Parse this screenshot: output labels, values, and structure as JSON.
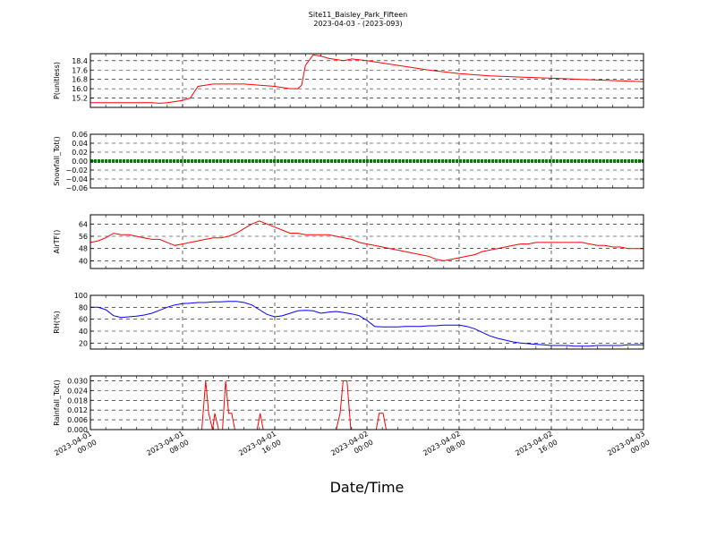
{
  "figure": {
    "title_line1": "Site11_Baisley_Park_Fifteen",
    "title_line2": "2023-04-03 - (2023-093)",
    "xlabel": "Date/Time"
  },
  "chart_data": [
    {
      "type": "line",
      "ylabel": "P(unitless)",
      "ylim": [
        14.4,
        19.0
      ],
      "yticks": [
        "15.2",
        "16.0",
        "16.8",
        "17.6",
        "18.4"
      ],
      "color": "#ff0000",
      "x": [
        0,
        4,
        8,
        9,
        10,
        12,
        13,
        14,
        16,
        20,
        24,
        26,
        27,
        27.5,
        28,
        29,
        30,
        31,
        32,
        33,
        34,
        36,
        40,
        44,
        48,
        52,
        56,
        60,
        64,
        68,
        72
      ],
      "values": [
        14.8,
        14.8,
        14.8,
        14.75,
        14.8,
        15.0,
        15.2,
        16.2,
        16.4,
        16.4,
        16.2,
        16.0,
        16.0,
        16.3,
        18.0,
        18.9,
        18.8,
        18.6,
        18.5,
        18.4,
        18.55,
        18.4,
        18.0,
        17.6,
        17.3,
        17.1,
        17.0,
        16.9,
        16.8,
        16.7,
        16.6
      ]
    },
    {
      "type": "line",
      "ylabel": "Snowfall_Tot()",
      "ylim": [
        -0.06,
        0.06
      ],
      "yticks": [
        "−0.06",
        "−0.04",
        "−0.02",
        "0.00",
        "0.02",
        "0.04",
        "0.06"
      ],
      "color": "#008000",
      "x": [
        0,
        72
      ],
      "values": [
        0.0,
        0.0
      ]
    },
    {
      "type": "line",
      "ylabel": "AirTF()",
      "ylim": [
        35,
        70
      ],
      "yticks": [
        "40",
        "48",
        "56",
        "64"
      ],
      "color": "#ff0000",
      "x": [
        0,
        1,
        2,
        3,
        4,
        5,
        6,
        7,
        8,
        9,
        10,
        11,
        12,
        13,
        14,
        15,
        16,
        17,
        18,
        19,
        20,
        21,
        22,
        23,
        24,
        25,
        26,
        27,
        28,
        29,
        30,
        31,
        32,
        33,
        34,
        35,
        36,
        37,
        38,
        39,
        40,
        41,
        42,
        43,
        44,
        45,
        46,
        47,
        48,
        49,
        50,
        51,
        52,
        53,
        54,
        55,
        56,
        57,
        58,
        59,
        60,
        61,
        62,
        63,
        64,
        65,
        66,
        67,
        68,
        69,
        70,
        71,
        72
      ],
      "values": [
        52,
        53,
        55,
        58,
        57,
        57,
        56,
        55,
        54,
        54,
        52,
        50,
        51,
        52,
        53,
        54,
        55,
        55,
        56,
        58,
        61,
        64,
        66,
        64,
        62,
        60,
        58,
        58,
        57,
        57,
        57,
        57,
        56,
        55,
        54,
        52,
        51,
        50,
        49,
        48,
        47,
        46,
        45,
        44,
        43,
        41,
        40,
        41,
        42,
        43,
        44,
        46,
        47,
        48,
        49,
        50,
        51,
        51,
        52,
        52,
        52,
        52,
        52,
        52,
        52,
        51,
        50,
        50,
        49,
        49,
        48,
        48,
        48
      ]
    },
    {
      "type": "line",
      "ylabel": "RH(%)",
      "ylim": [
        10,
        100
      ],
      "yticks": [
        "20",
        "40",
        "60",
        "80",
        "100"
      ],
      "color": "#0000ff",
      "x": [
        0,
        1,
        2,
        3,
        4,
        5,
        6,
        7,
        8,
        9,
        10,
        11,
        12,
        13,
        14,
        15,
        16,
        17,
        18,
        19,
        20,
        21,
        22,
        23,
        24,
        25,
        26,
        27,
        28,
        29,
        30,
        31,
        32,
        33,
        34,
        35,
        36,
        37,
        38,
        39,
        40,
        41,
        42,
        43,
        44,
        45,
        46,
        47,
        48,
        49,
        50,
        51,
        52,
        53,
        54,
        55,
        56,
        57,
        58,
        59,
        60,
        61,
        62,
        63,
        64,
        65,
        66,
        67,
        68,
        69,
        70,
        71,
        72
      ],
      "values": [
        80,
        80,
        76,
        66,
        63,
        64,
        65,
        67,
        70,
        75,
        80,
        84,
        86,
        87,
        88,
        88,
        89,
        89,
        90,
        90,
        88,
        84,
        76,
        68,
        64,
        66,
        70,
        74,
        75,
        74,
        70,
        72,
        73,
        71,
        69,
        66,
        58,
        48,
        47,
        47,
        47,
        48,
        48,
        48,
        49,
        49,
        50,
        50,
        50,
        48,
        44,
        38,
        32,
        28,
        25,
        22,
        20,
        19,
        18,
        17,
        16,
        16,
        16,
        15,
        15,
        15,
        16,
        16,
        16,
        16,
        17,
        17,
        17
      ]
    },
    {
      "type": "line",
      "ylabel": "Rainfall_Tot()",
      "ylim": [
        0,
        0.033
      ],
      "yticks": [
        "0.000",
        "0.006",
        "0.012",
        "0.018",
        "0.024",
        "0.030"
      ],
      "color": "#ff0000",
      "x": [
        0,
        14.5,
        15.0,
        15.4,
        15.9,
        16.2,
        16.7,
        17.2,
        17.6,
        18.0,
        18.4,
        18.8,
        21.7,
        22.1,
        22.5,
        32.0,
        32.5,
        32.9,
        33.4,
        33.9,
        37.2,
        37.6,
        38.1,
        38.5,
        72
      ],
      "values": [
        0,
        0,
        0.03,
        0.01,
        0,
        0.01,
        0,
        0,
        0.03,
        0.01,
        0.01,
        0,
        0,
        0.01,
        0,
        0,
        0.01,
        0.03,
        0.03,
        0,
        0,
        0.01,
        0.01,
        0,
        0
      ]
    }
  ],
  "x_axis": {
    "range_hours": [
      0,
      72
    ],
    "ticks": [
      {
        "hour": 0,
        "line1": "2023-04-01",
        "line2": "00:00"
      },
      {
        "hour": 12,
        "line1": "2023-04-01",
        "line2": "08:00"
      },
      {
        "hour": 24,
        "line1": "2023-04-01",
        "line2": "16:00"
      },
      {
        "hour": 36,
        "line1": "2023-04-02",
        "line2": "00:00"
      },
      {
        "hour": 48,
        "line1": "2023-04-02",
        "line2": "08:00"
      },
      {
        "hour": 60,
        "line1": "2023-04-02",
        "line2": "16:00"
      },
      {
        "hour": 72,
        "line1": "2023-04-03",
        "line2": "00:00"
      }
    ]
  }
}
